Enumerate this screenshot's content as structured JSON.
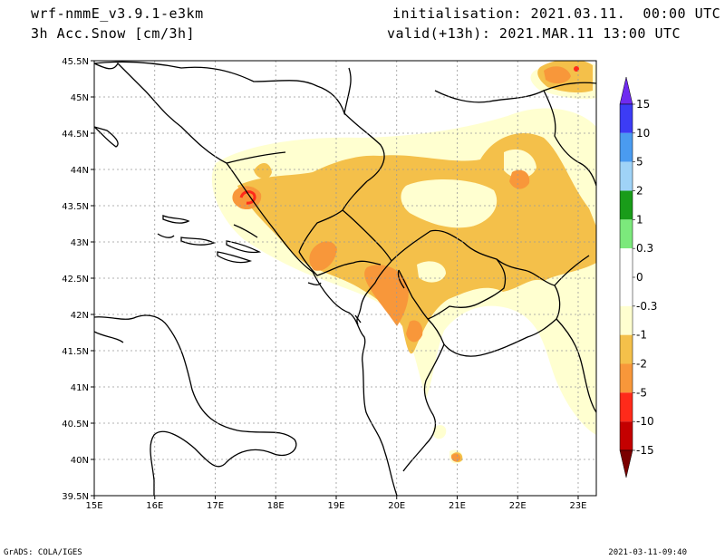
{
  "header": {
    "model": "wrf-nmmE_v3.9.1-e3km",
    "parameter": "3h Acc.Snow [cm/3h]",
    "initialisation": "initialisation: 2021.03.11.  00:00 UTC",
    "valid": "valid(+13h): 2021.MAR.11 13:00 UTC"
  },
  "axes": {
    "x_ticks": [
      "15E",
      "16E",
      "17E",
      "18E",
      "19E",
      "20E",
      "21E",
      "22E",
      "23E"
    ],
    "y_ticks": [
      "45.5N",
      "45N",
      "44.5N",
      "44N",
      "43.5N",
      "43N",
      "42.5N",
      "42N",
      "41.5N",
      "41N",
      "40.5N",
      "40N",
      "39.5N"
    ],
    "lon_range": [
      15,
      23.3
    ],
    "lat_range": [
      39.5,
      45.5
    ],
    "grid": true
  },
  "colorbar": {
    "labels": [
      "15",
      "10",
      "5",
      "2",
      "1",
      "0.3",
      "0",
      "-0.3",
      "-1",
      "-2",
      "-5",
      "-10",
      "-15"
    ],
    "colors": [
      "#6f2bf0",
      "#3c3cf5",
      "#4a9bf0",
      "#9fd3f7",
      "#199c19",
      "#7ce97c",
      "#ffffff",
      "#ffffd0",
      "#f4c04a",
      "#f8973a",
      "#ff2a1a",
      "#c40000",
      "#7a0000"
    ]
  },
  "footer": {
    "left": "GrADS: COLA/IGES",
    "right": "2021-03-11-09:40"
  }
}
